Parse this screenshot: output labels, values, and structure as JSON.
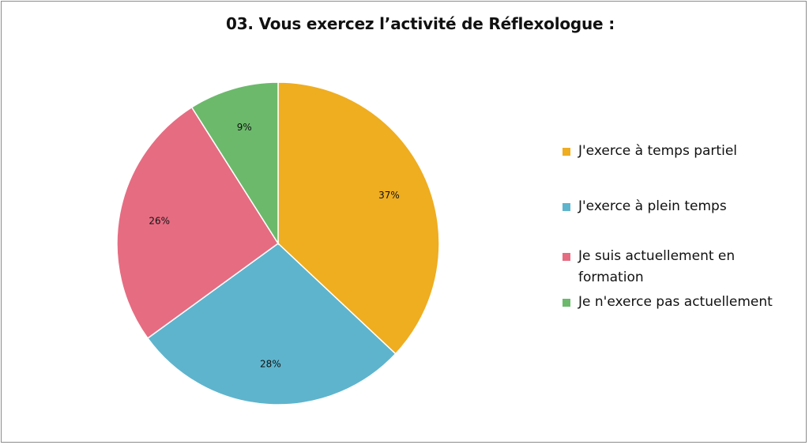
{
  "chart_data": {
    "type": "pie",
    "title": "03. Vous exercez l’activité de Réflexologue :",
    "legend_position": "right",
    "slices": [
      {
        "label": "J'exerce à temps partiel",
        "value": 37,
        "value_label": "37%",
        "color": "#EFAD20"
      },
      {
        "label": "J'exerce à plein temps",
        "value": 28,
        "value_label": "28%",
        "color": "#5EB4CD"
      },
      {
        "label": "Je suis actuellement en formation",
        "value": 26,
        "value_label": "26%",
        "color": "#E66C82"
      },
      {
        "label": "Je n'exerce pas actuellement",
        "value": 9,
        "value_label": "9%",
        "color": "#6CB96C"
      }
    ]
  }
}
